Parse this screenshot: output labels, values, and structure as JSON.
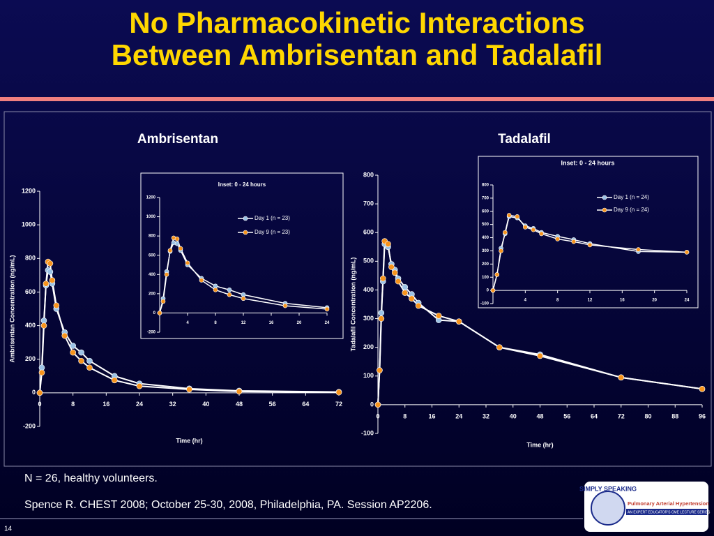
{
  "title_lines": [
    "No Pharmacokinetic Interactions",
    "Between Ambrisentan and Tadalafil"
  ],
  "chart_data": [
    {
      "type": "line",
      "title": "Ambrisentan",
      "x_label": "Time (hr)",
      "y_label": "Ambrisentan Concentration (ng/mL)",
      "x": [
        0,
        0.5,
        1,
        1.5,
        2,
        2.5,
        3,
        4,
        6,
        8,
        10,
        12,
        18,
        24,
        36,
        48,
        72
      ],
      "series": [
        {
          "color": "#9cc3e6",
          "line_color": "#ffffff",
          "values": [
            0,
            150,
            430,
            640,
            730,
            720,
            650,
            500,
            360,
            280,
            240,
            190,
            100,
            55,
            25,
            12,
            5
          ]
        },
        {
          "color": "#f7941d",
          "line_color": "#ffffff",
          "values": [
            0,
            120,
            400,
            650,
            780,
            770,
            670,
            520,
            340,
            240,
            190,
            150,
            75,
            40,
            20,
            8,
            3
          ]
        }
      ],
      "xlim": [
        0,
        72
      ],
      "xticks": [
        0,
        8,
        16,
        24,
        32,
        40,
        48,
        56,
        64,
        72
      ],
      "ylim": [
        -200,
        1200
      ],
      "yticks": [
        -200,
        0,
        200,
        400,
        600,
        800,
        1000,
        1200
      ]
    },
    {
      "type": "line",
      "title": "Inset: 0 - 24 hours",
      "x": [
        0,
        0.5,
        1,
        1.5,
        2,
        2.5,
        3,
        4,
        6,
        8,
        10,
        12,
        18,
        24
      ],
      "series": [
        {
          "name": "Day 1 (n = 23)",
          "color": "#9cc3e6",
          "line_color": "#ffffff",
          "values": [
            0,
            150,
            430,
            640,
            730,
            720,
            650,
            500,
            360,
            280,
            240,
            190,
            100,
            55
          ]
        },
        {
          "name": "Day 9 (n = 23)",
          "color": "#f7941d",
          "line_color": "#ffffff",
          "values": [
            0,
            120,
            400,
            650,
            780,
            770,
            670,
            520,
            340,
            240,
            190,
            150,
            75,
            40
          ]
        }
      ],
      "xlim": [
        0,
        24
      ],
      "xticks": [
        4,
        8,
        12,
        16,
        20,
        24
      ],
      "ylim": [
        -200,
        1200
      ],
      "yticks": [
        -200,
        0,
        200,
        400,
        600,
        800,
        1000,
        1200
      ]
    },
    {
      "type": "line",
      "title": "Tadalafil",
      "x_label": "Time (hr)",
      "y_label": "Tadalafil Concentration (ng/mL)",
      "x": [
        0,
        0.5,
        1,
        1.5,
        2,
        3,
        4,
        5,
        6,
        8,
        10,
        12,
        18,
        24,
        36,
        48,
        72,
        96
      ],
      "series": [
        {
          "color": "#9cc3e6",
          "line_color": "#ffffff",
          "values": [
            0,
            120,
            320,
            430,
            560,
            550,
            490,
            470,
            440,
            410,
            385,
            355,
            295,
            290,
            200,
            175,
            95,
            55
          ]
        },
        {
          "color": "#f7941d",
          "line_color": "#ffffff",
          "values": [
            0,
            120,
            300,
            440,
            570,
            560,
            480,
            460,
            430,
            390,
            370,
            345,
            310,
            290,
            200,
            170,
            95,
            55
          ]
        }
      ],
      "xlim": [
        0,
        96
      ],
      "xticks": [
        0,
        8,
        16,
        24,
        32,
        40,
        48,
        56,
        64,
        72,
        80,
        88,
        96
      ],
      "ylim": [
        -100,
        800
      ],
      "yticks": [
        -100,
        0,
        100,
        200,
        300,
        400,
        500,
        600,
        700,
        800
      ]
    },
    {
      "type": "line",
      "title": "Inset: 0 - 24 hours",
      "x": [
        0,
        0.5,
        1,
        1.5,
        2,
        3,
        4,
        5,
        6,
        8,
        10,
        12,
        18,
        24
      ],
      "series": [
        {
          "name": "Day 1 (n = 24)",
          "color": "#9cc3e6",
          "line_color": "#ffffff",
          "values": [
            0,
            120,
            320,
            430,
            560,
            550,
            490,
            470,
            440,
            410,
            385,
            355,
            295,
            290
          ]
        },
        {
          "name": "Day 9 (n = 24)",
          "color": "#f7941d",
          "line_color": "#ffffff",
          "values": [
            0,
            120,
            300,
            440,
            570,
            560,
            480,
            460,
            430,
            390,
            370,
            345,
            310,
            290
          ]
        }
      ],
      "xlim": [
        0,
        24
      ],
      "xticks": [
        4,
        8,
        12,
        16,
        20,
        24
      ],
      "ylim": [
        -100,
        800
      ],
      "yticks": [
        -100,
        0,
        100,
        200,
        300,
        400,
        500,
        600,
        700,
        800
      ]
    }
  ],
  "notes": [
    "N = 26, healthy volunteers.",
    "Spence R. CHEST 2008; October 25-30, 2008, Philadelphia, PA. Session AP2206."
  ],
  "slide_number": "14",
  "logo": {
    "name": "SIMPLY SPEAKING",
    "topic": "Pulmonary Arterial Hypertension",
    "series": "AN EXPERT EDUCATOR'S CME LECTURE SERIES"
  }
}
